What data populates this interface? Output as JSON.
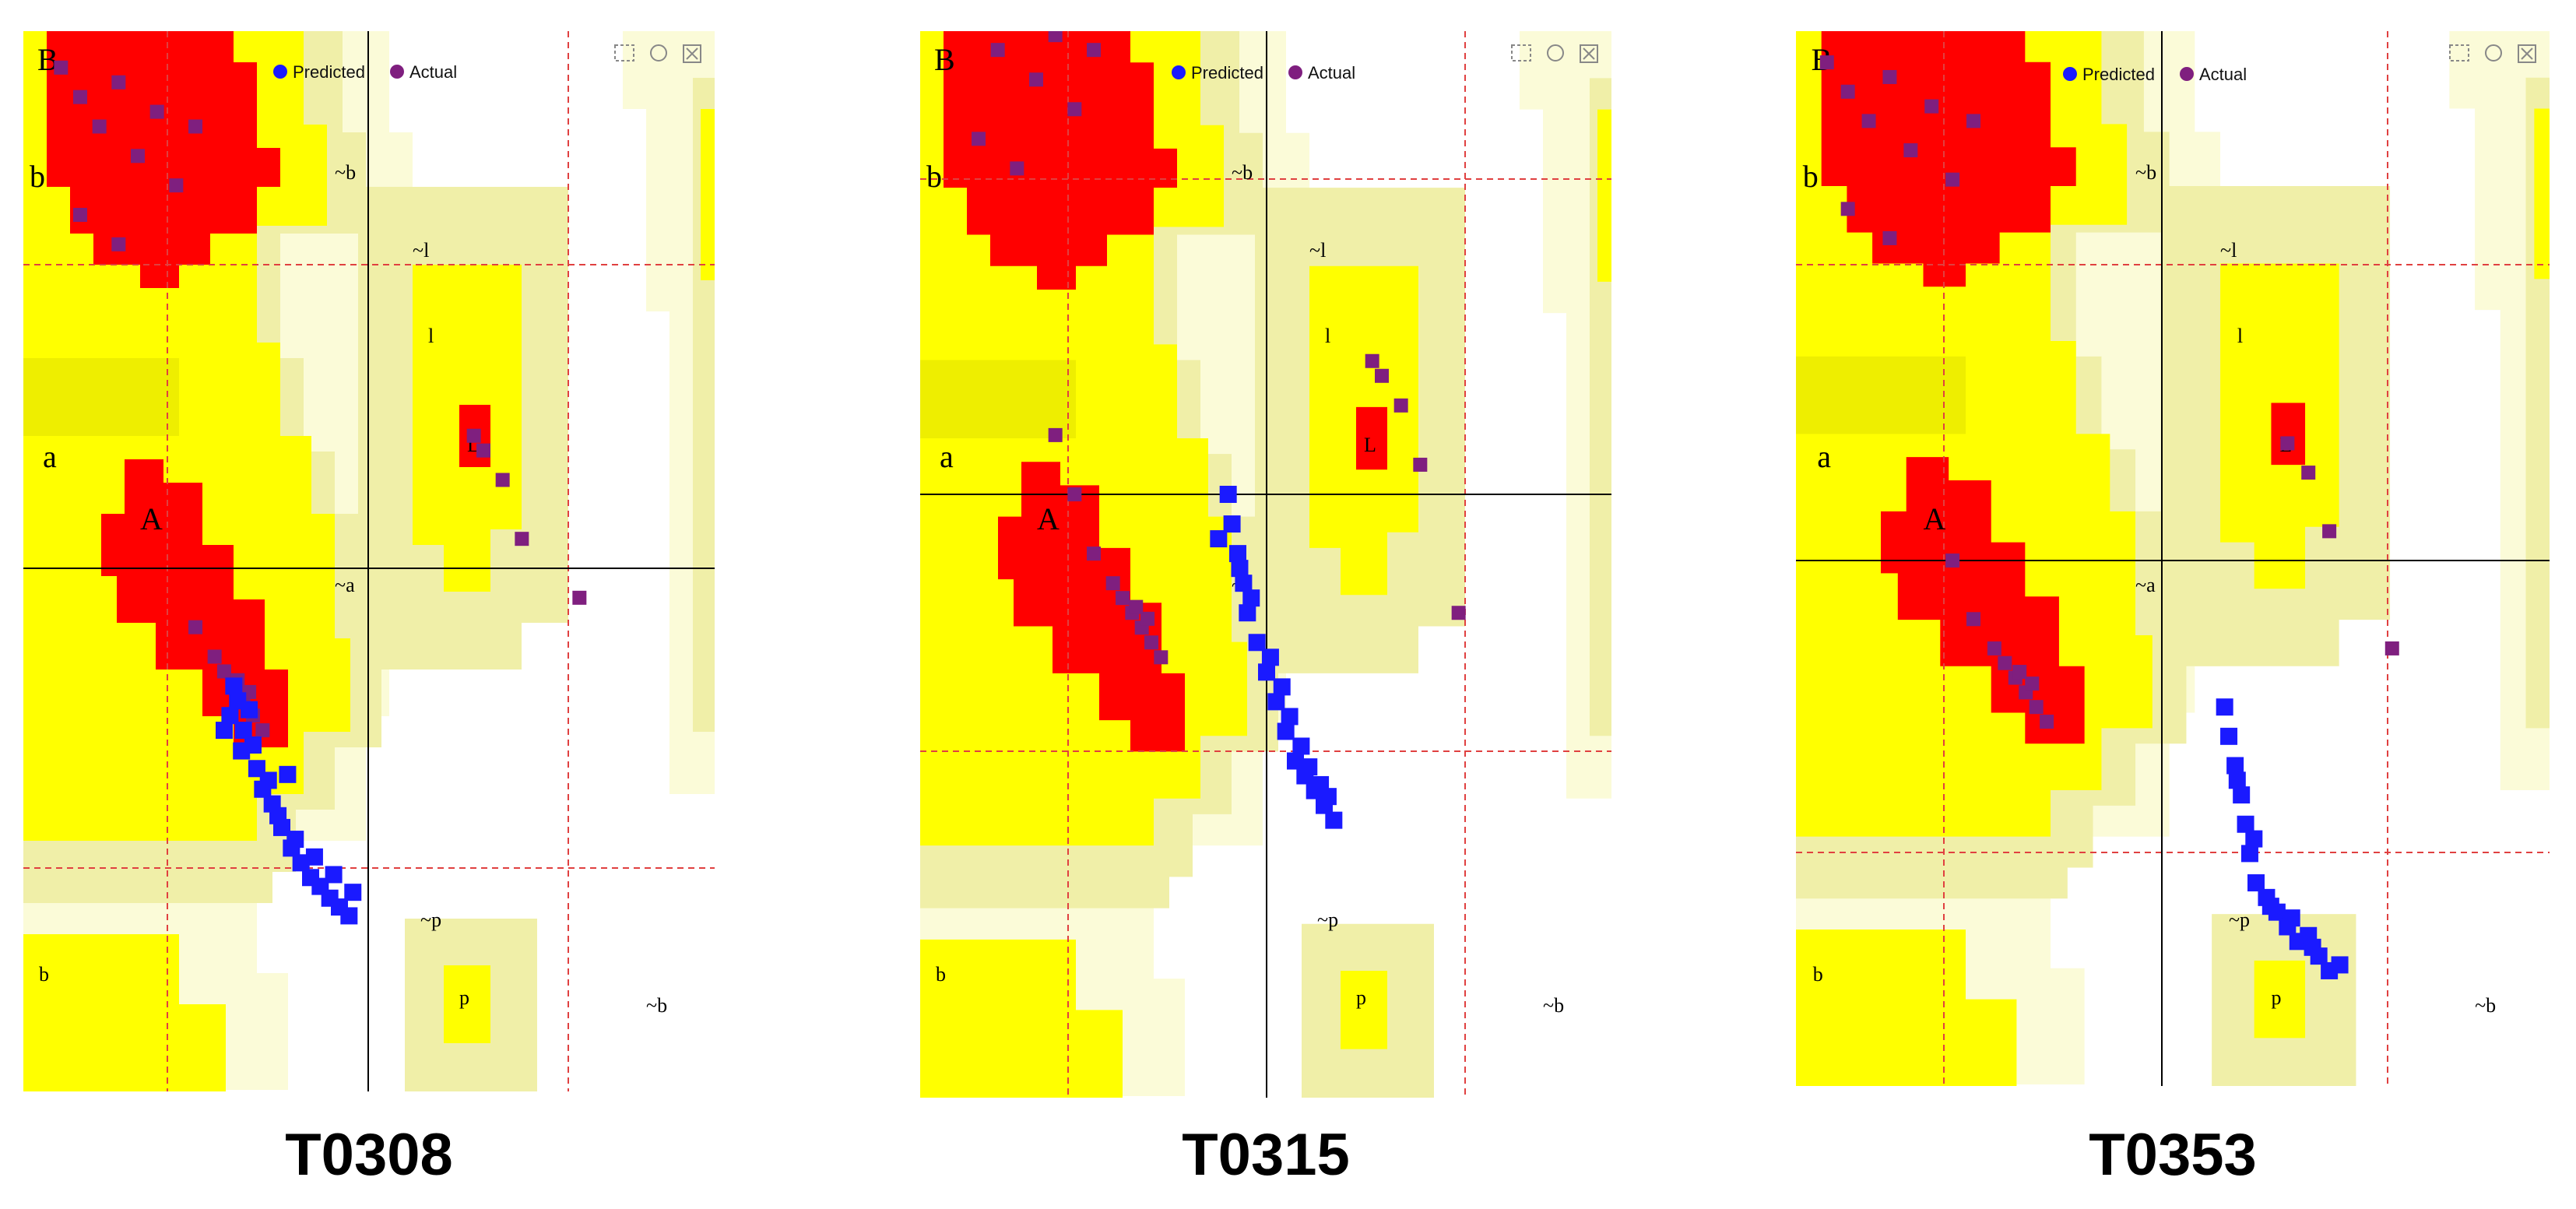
{
  "colors": {
    "core": "#ff0000",
    "allowed": "#ffff00",
    "allowed_dark": "#eeee00",
    "generous": "#f0efa8",
    "outer": "#fbfbd8",
    "predicted": "#1a1aff",
    "actual": "#7f1f7f",
    "gridline": "#000000",
    "dashline": "#e04040"
  },
  "legend": {
    "predicted": "Predicted",
    "actual": "Actual"
  },
  "toolbar_icons": [
    "zoom-box-icon",
    "reset-icon",
    "close-icon"
  ],
  "region_labels": [
    "B",
    "b",
    "~b",
    "~l",
    "l",
    "L",
    "a",
    "A",
    "~a",
    "~p",
    "p",
    "~b"
  ],
  "chart_data": [
    {
      "type": "scatter",
      "title": "T0308",
      "series": [
        {
          "name": "Predicted",
          "points": [
            [
              -70,
              -40
            ],
            [
              -68,
              -45
            ],
            [
              -72,
              -50
            ],
            [
              -65,
              -55
            ],
            [
              -60,
              -60
            ],
            [
              -58,
              -68
            ],
            [
              -55,
              -75
            ],
            [
              -50,
              -80
            ],
            [
              -45,
              -88
            ],
            [
              -40,
              -95
            ],
            [
              -35,
              -100
            ],
            [
              -30,
              -105
            ],
            [
              -25,
              -108
            ],
            [
              -20,
              -112
            ],
            [
              -15,
              -115
            ],
            [
              -10,
              -118
            ],
            [
              -62,
              -48
            ],
            [
              -66,
              -62
            ],
            [
              -52,
              -72
            ],
            [
              -47,
              -84
            ],
            [
              -38,
              -92
            ],
            [
              -28,
              -98
            ],
            [
              -18,
              -104
            ],
            [
              -8,
              -110
            ],
            [
              -75,
              -55
            ],
            [
              -42,
              -70
            ]
          ]
        },
        {
          "name": "Actual",
          "points": [
            [
              -160,
              170
            ],
            [
              -150,
              160
            ],
            [
              -140,
              150
            ],
            [
              -130,
              165
            ],
            [
              -120,
              140
            ],
            [
              -110,
              155
            ],
            [
              -100,
              130
            ],
            [
              -90,
              150
            ],
            [
              -150,
              120
            ],
            [
              -130,
              110
            ],
            [
              -70,
              -40
            ],
            [
              -65,
              -45
            ],
            [
              -60,
              -50
            ],
            [
              -75,
              -35
            ],
            [
              -80,
              -30
            ],
            [
              -55,
              -55
            ],
            [
              -62,
              -42
            ],
            [
              -68,
              -38
            ],
            [
              -90,
              -20
            ],
            [
              60,
              40
            ],
            [
              70,
              30
            ],
            [
              55,
              45
            ],
            [
              80,
              10
            ],
            [
              110,
              -10
            ]
          ]
        }
      ]
    },
    {
      "type": "scatter",
      "title": "T0315",
      "series": [
        {
          "name": "Predicted",
          "points": [
            [
              -20,
              0
            ],
            [
              -18,
              -10
            ],
            [
              -15,
              -20
            ],
            [
              -12,
              -30
            ],
            [
              -10,
              -40
            ],
            [
              -5,
              -50
            ],
            [
              0,
              -60
            ],
            [
              5,
              -70
            ],
            [
              10,
              -80
            ],
            [
              15,
              -90
            ],
            [
              20,
              -95
            ],
            [
              25,
              -100
            ],
            [
              30,
              -105
            ],
            [
              35,
              -110
            ],
            [
              -25,
              -15
            ],
            [
              -8,
              -35
            ],
            [
              2,
              -55
            ],
            [
              12,
              -75
            ],
            [
              22,
              -92
            ],
            [
              32,
              -102
            ],
            [
              -14,
              -25
            ],
            [
              8,
              -65
            ],
            [
              18,
              -85
            ],
            [
              28,
              -98
            ]
          ]
        },
        {
          "name": "Actual",
          "points": [
            [
              -160,
              170
            ],
            [
              -150,
              160
            ],
            [
              -140,
              150
            ],
            [
              -130,
              165
            ],
            [
              -120,
              140
            ],
            [
              -110,
              155
            ],
            [
              -100,
              130
            ],
            [
              -90,
              150
            ],
            [
              -150,
              120
            ],
            [
              -130,
              110
            ],
            [
              -70,
              -40
            ],
            [
              -65,
              -45
            ],
            [
              -60,
              -50
            ],
            [
              -75,
              -35
            ],
            [
              -80,
              -30
            ],
            [
              -55,
              -55
            ],
            [
              -62,
              -42
            ],
            [
              -68,
              -38
            ],
            [
              -90,
              -20
            ],
            [
              -100,
              0
            ],
            [
              -110,
              20
            ],
            [
              60,
              40
            ],
            [
              70,
              30
            ],
            [
              55,
              45
            ],
            [
              80,
              10
            ],
            [
              100,
              -40
            ]
          ]
        }
      ]
    },
    {
      "type": "scatter",
      "title": "T0353",
      "series": [
        {
          "name": "Predicted",
          "points": [
            [
              30,
              -50
            ],
            [
              32,
              -60
            ],
            [
              35,
              -70
            ],
            [
              38,
              -80
            ],
            [
              40,
              -90
            ],
            [
              42,
              -100
            ],
            [
              45,
              -110
            ],
            [
              50,
              -115
            ],
            [
              55,
              -120
            ],
            [
              60,
              -125
            ],
            [
              65,
              -130
            ],
            [
              70,
              -128
            ],
            [
              75,
              -135
            ],
            [
              80,
              -140
            ],
            [
              36,
              -75
            ],
            [
              44,
              -95
            ],
            [
              52,
              -118
            ],
            [
              62,
              -122
            ],
            [
              72,
              -132
            ],
            [
              85,
              -138
            ]
          ]
        },
        {
          "name": "Actual",
          "points": [
            [
              -160,
              170
            ],
            [
              -150,
              160
            ],
            [
              -140,
              150
            ],
            [
              -130,
              165
            ],
            [
              -120,
              140
            ],
            [
              -110,
              155
            ],
            [
              -100,
              130
            ],
            [
              -90,
              150
            ],
            [
              -150,
              120
            ],
            [
              -130,
              110
            ],
            [
              -70,
              -40
            ],
            [
              -65,
              -45
            ],
            [
              -60,
              -50
            ],
            [
              -75,
              -35
            ],
            [
              -80,
              -30
            ],
            [
              -55,
              -55
            ],
            [
              -62,
              -42
            ],
            [
              -68,
              -38
            ],
            [
              -90,
              -20
            ],
            [
              -100,
              0
            ],
            [
              60,
              40
            ],
            [
              70,
              30
            ],
            [
              80,
              10
            ],
            [
              110,
              -30
            ]
          ]
        }
      ]
    }
  ]
}
